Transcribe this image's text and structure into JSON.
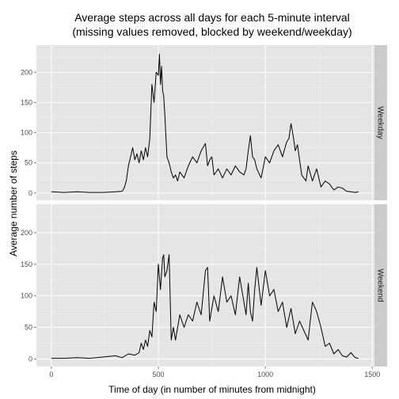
{
  "chart_data": {
    "type": "line",
    "title_line1": "Average steps across all days for each 5-minute interval",
    "title_line2": "(missing values removed, blocked by weekend/weekday)",
    "xlabel": "Time of day (in number of minutes from midnight)",
    "ylabel": "Average number of steps",
    "xlim": [
      -70,
      1510
    ],
    "ylim": [
      -12,
      245
    ],
    "x_ticks": [
      0,
      500,
      1000,
      1500
    ],
    "x_tick_labels": [
      "0",
      "500",
      "1000",
      "1500"
    ],
    "y_ticks": [
      0,
      50,
      100,
      150,
      200
    ],
    "y_tick_labels": [
      "0",
      "50",
      "100",
      "150",
      "200"
    ],
    "grid": true,
    "panels": [
      {
        "strip_label": "Weekday",
        "x": [
          0,
          60,
          120,
          180,
          240,
          300,
          330,
          340,
          350,
          360,
          370,
          380,
          390,
          400,
          410,
          420,
          430,
          440,
          450,
          460,
          470,
          480,
          490,
          500,
          505,
          510,
          515,
          520,
          525,
          530,
          540,
          550,
          560,
          570,
          580,
          590,
          600,
          620,
          640,
          660,
          680,
          700,
          720,
          730,
          740,
          750,
          760,
          780,
          800,
          820,
          840,
          860,
          880,
          900,
          910,
          920,
          930,
          940,
          950,
          960,
          980,
          1000,
          1020,
          1040,
          1060,
          1080,
          1100,
          1110,
          1120,
          1130,
          1140,
          1150,
          1160,
          1170,
          1180,
          1190,
          1200,
          1220,
          1240,
          1260,
          1280,
          1300,
          1320,
          1340,
          1360,
          1380,
          1400,
          1420,
          1435
        ],
        "y": [
          2,
          1,
          2,
          1,
          1,
          2,
          3,
          8,
          20,
          45,
          60,
          75,
          55,
          65,
          50,
          70,
          55,
          75,
          60,
          90,
          180,
          150,
          200,
          195,
          230,
          180,
          210,
          170,
          160,
          130,
          60,
          50,
          35,
          25,
          30,
          20,
          35,
          25,
          45,
          60,
          50,
          70,
          82,
          45,
          55,
          60,
          30,
          40,
          25,
          40,
          30,
          45,
          35,
          30,
          40,
          70,
          95,
          60,
          55,
          40,
          25,
          60,
          50,
          70,
          80,
          60,
          85,
          90,
          115,
          95,
          70,
          80,
          55,
          30,
          25,
          20,
          45,
          20,
          40,
          10,
          20,
          15,
          5,
          10,
          8,
          3,
          2,
          1,
          2
        ]
      },
      {
        "strip_label": "Weekend",
        "x": [
          0,
          60,
          120,
          180,
          240,
          300,
          330,
          360,
          390,
          410,
          420,
          430,
          440,
          450,
          460,
          470,
          480,
          490,
          500,
          510,
          520,
          525,
          530,
          540,
          550,
          560,
          570,
          580,
          600,
          620,
          640,
          660,
          680,
          700,
          720,
          730,
          740,
          750,
          760,
          780,
          800,
          820,
          840,
          860,
          880,
          900,
          910,
          920,
          930,
          940,
          950,
          960,
          980,
          1000,
          1020,
          1040,
          1060,
          1080,
          1100,
          1120,
          1140,
          1160,
          1180,
          1200,
          1220,
          1240,
          1260,
          1280,
          1300,
          1320,
          1340,
          1360,
          1380,
          1400,
          1420,
          1435
        ],
        "y": [
          1,
          1,
          2,
          1,
          3,
          5,
          2,
          8,
          6,
          10,
          25,
          15,
          30,
          20,
          45,
          35,
          90,
          75,
          150,
          110,
          160,
          165,
          130,
          140,
          165,
          30,
          50,
          30,
          70,
          50,
          70,
          60,
          90,
          70,
          140,
          145,
          60,
          80,
          100,
          75,
          130,
          90,
          100,
          70,
          130,
          90,
          70,
          120,
          75,
          60,
          110,
          145,
          85,
          140,
          100,
          110,
          75,
          90,
          50,
          80,
          40,
          60,
          45,
          30,
          90,
          75,
          50,
          20,
          25,
          8,
          15,
          5,
          3,
          10,
          2,
          1
        ]
      }
    ]
  }
}
